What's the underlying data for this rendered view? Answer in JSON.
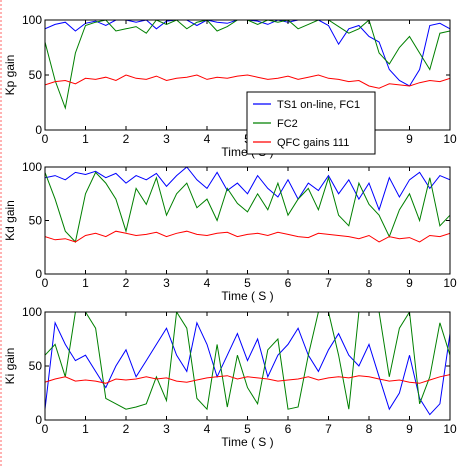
{
  "chart_data": [
    {
      "type": "line",
      "ylabel": "Kp gain",
      "xlabel": "Time ( S )",
      "xlim": [
        0,
        10
      ],
      "ylim": [
        0,
        100
      ],
      "xticks": [
        "0",
        "1",
        "2",
        "3",
        "4",
        "5",
        "6",
        "7",
        "8",
        "9",
        "10"
      ],
      "yticks": [
        "0",
        "50",
        "100"
      ],
      "grid": false,
      "legend": {
        "placement": "right",
        "entries": [
          {
            "label": "TS1 on-line, FC1",
            "color": "#0000ff"
          },
          {
            "label": "FC2",
            "color": "#008000"
          },
          {
            "label": "QFC gains 111",
            "color": "#ff0000"
          }
        ]
      },
      "x": [
        0,
        0.25,
        0.5,
        0.75,
        1,
        1.25,
        1.5,
        1.75,
        2,
        2.25,
        2.5,
        2.75,
        3,
        3.25,
        3.5,
        3.75,
        4,
        4.25,
        4.5,
        4.75,
        5,
        5.25,
        5.5,
        5.75,
        6,
        6.25,
        6.5,
        6.75,
        7,
        7.25,
        7.5,
        7.75,
        8,
        8.25,
        8.5,
        8.75,
        9,
        9.25,
        9.5,
        9.75,
        10
      ],
      "series": [
        {
          "color": "#0000ff",
          "values": [
            92,
            96,
            98,
            90,
            97,
            99,
            95,
            100,
            100,
            98,
            100,
            92,
            99,
            100,
            100,
            95,
            100,
            98,
            97,
            100,
            100,
            99,
            96,
            100,
            98,
            100,
            100,
            100,
            95,
            78,
            92,
            95,
            85,
            80,
            55,
            45,
            40,
            55,
            95,
            97,
            92
          ]
        },
        {
          "color": "#008000",
          "values": [
            80,
            45,
            20,
            70,
            95,
            98,
            100,
            90,
            92,
            94,
            88,
            100,
            96,
            100,
            92,
            98,
            100,
            90,
            94,
            100,
            100,
            96,
            100,
            98,
            100,
            92,
            96,
            100,
            100,
            94,
            88,
            92,
            100,
            70,
            60,
            75,
            85,
            70,
            55,
            88,
            90
          ]
        },
        {
          "color": "#ff0000",
          "values": [
            41,
            44,
            45,
            42,
            47,
            46,
            48,
            45,
            50,
            47,
            46,
            49,
            45,
            47,
            48,
            50,
            46,
            48,
            47,
            49,
            50,
            48,
            46,
            47,
            49,
            46,
            48,
            50,
            47,
            46,
            44,
            45,
            40,
            38,
            42,
            41,
            40,
            43,
            45,
            44,
            47
          ]
        }
      ]
    },
    {
      "type": "line",
      "ylabel": "Kd gain",
      "xlabel": "Time ( S )",
      "xlim": [
        0,
        10
      ],
      "ylim": [
        0,
        100
      ],
      "xticks": [
        "0",
        "1",
        "2",
        "3",
        "4",
        "5",
        "6",
        "7",
        "8",
        "9",
        "10"
      ],
      "yticks": [
        "0",
        "50",
        "100"
      ],
      "grid": false,
      "x": [
        0,
        0.25,
        0.5,
        0.75,
        1,
        1.25,
        1.5,
        1.75,
        2,
        2.25,
        2.5,
        2.75,
        3,
        3.25,
        3.5,
        3.75,
        4,
        4.25,
        4.5,
        4.75,
        5,
        5.25,
        5.5,
        5.75,
        6,
        6.25,
        6.5,
        6.75,
        7,
        7.25,
        7.5,
        7.75,
        8,
        8.25,
        8.5,
        8.75,
        9,
        9.25,
        9.5,
        9.75,
        10
      ],
      "series": [
        {
          "color": "#0000ff",
          "values": [
            90,
            92,
            88,
            95,
            93,
            96,
            90,
            94,
            85,
            92,
            88,
            94,
            82,
            92,
            100,
            88,
            80,
            95,
            78,
            85,
            75,
            92,
            80,
            72,
            88,
            70,
            85,
            78,
            92,
            75,
            88,
            70,
            85,
            60,
            90,
            72,
            88,
            95,
            80,
            92,
            88
          ]
        },
        {
          "color": "#008000",
          "values": [
            95,
            70,
            40,
            30,
            75,
            95,
            85,
            70,
            40,
            80,
            65,
            90,
            55,
            75,
            85,
            62,
            70,
            50,
            80,
            66,
            58,
            75,
            60,
            85,
            55,
            70,
            80,
            60,
            90,
            55,
            45,
            85,
            65,
            55,
            35,
            60,
            75,
            50,
            90,
            45,
            55
          ]
        },
        {
          "color": "#ff0000",
          "values": [
            35,
            32,
            33,
            30,
            36,
            38,
            35,
            40,
            38,
            36,
            37,
            39,
            35,
            38,
            40,
            37,
            36,
            38,
            39,
            35,
            37,
            38,
            36,
            39,
            37,
            35,
            34,
            38,
            37,
            36,
            35,
            33,
            36,
            30,
            35,
            33,
            34,
            30,
            36,
            35,
            38
          ]
        }
      ]
    },
    {
      "type": "line",
      "ylabel": "Ki gain",
      "xlabel": "Time ( S )",
      "xlim": [
        0,
        10
      ],
      "ylim": [
        0,
        100
      ],
      "xticks": [
        "0",
        "1",
        "2",
        "3",
        "4",
        "5",
        "6",
        "7",
        "8",
        "9",
        "10"
      ],
      "yticks": [
        "0",
        "50",
        "100"
      ],
      "grid": false,
      "x": [
        0,
        0.25,
        0.5,
        0.75,
        1,
        1.25,
        1.5,
        1.75,
        2,
        2.25,
        2.5,
        2.75,
        3,
        3.25,
        3.5,
        3.75,
        4,
        4.25,
        4.5,
        4.75,
        5,
        5.25,
        5.5,
        5.75,
        6,
        6.25,
        6.5,
        6.75,
        7,
        7.25,
        7.5,
        7.75,
        8,
        8.25,
        8.5,
        8.75,
        9,
        9.25,
        9.5,
        9.75,
        10
      ],
      "series": [
        {
          "color": "#0000ff",
          "values": [
            10,
            90,
            70,
            55,
            60,
            45,
            30,
            50,
            65,
            40,
            55,
            70,
            85,
            60,
            45,
            90,
            70,
            40,
            60,
            80,
            55,
            75,
            40,
            60,
            70,
            85,
            60,
            45,
            65,
            80,
            60,
            50,
            70,
            40,
            10,
            25,
            60,
            20,
            5,
            15,
            80
          ]
        },
        {
          "color": "#008000",
          "values": [
            60,
            70,
            40,
            100,
            100,
            85,
            20,
            15,
            10,
            12,
            15,
            40,
            18,
            100,
            85,
            20,
            10,
            70,
            12,
            60,
            30,
            15,
            65,
            75,
            10,
            12,
            60,
            100,
            100,
            60,
            10,
            100,
            100,
            100,
            40,
            85,
            100,
            15,
            40,
            90,
            60
          ]
        },
        {
          "color": "#ff0000",
          "values": [
            35,
            38,
            40,
            36,
            37,
            36,
            34,
            38,
            37,
            38,
            40,
            38,
            39,
            36,
            35,
            37,
            39,
            40,
            41,
            38,
            40,
            39,
            38,
            36,
            37,
            38,
            40,
            37,
            39,
            40,
            39,
            41,
            40,
            38,
            36,
            37,
            35,
            34,
            37,
            40,
            42
          ]
        }
      ]
    }
  ]
}
